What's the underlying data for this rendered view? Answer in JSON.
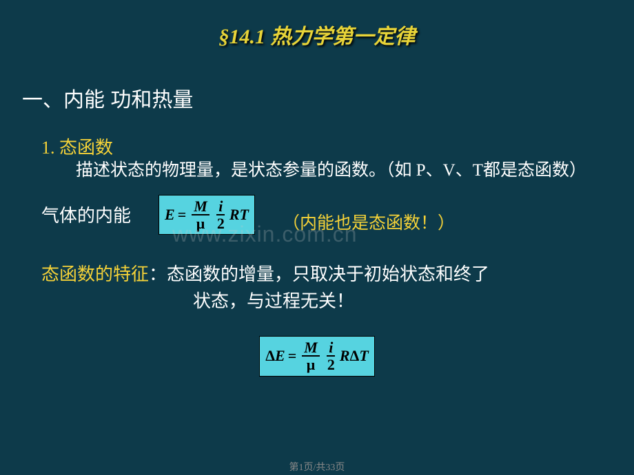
{
  "title": "§14.1 热力学第一定律",
  "heading1": "一、内能 功和热量",
  "section1": {
    "num_label": "1. 态函数",
    "desc": "描述状态的物理量，是状态参量的函数。（如 P、V、T都是态函数）",
    "gas_label": "气体的内能",
    "note": "（内能也是态函数！）"
  },
  "formula1": {
    "lhs": "E",
    "eq": "=",
    "frac1_num": "M",
    "frac1_den": "μ",
    "frac2_num": "i",
    "frac2_den": "2",
    "tail": "RT",
    "bg_color": "#56d3e0"
  },
  "characteristic": {
    "label": "态函数的特征",
    "colon": "：",
    "body1": "态函数的增量，只取决于初始状态和终了",
    "body2": "状态，与过程无关！"
  },
  "formula2": {
    "lhs": "ΔE",
    "eq": "=",
    "frac1_num": "M",
    "frac1_den": "μ",
    "frac2_num": "i",
    "frac2_den": "2",
    "tail1": "R",
    "tail2": "ΔT",
    "bg_color": "#56d3e0"
  },
  "watermark": "www.zixin.com.cn",
  "footer": "第1页/共33页",
  "colors": {
    "background": "#0d3a4a",
    "title": "#e8d438",
    "yellow": "#f5d238",
    "white": "#ffffff",
    "formula_bg": "#56d3e0"
  }
}
